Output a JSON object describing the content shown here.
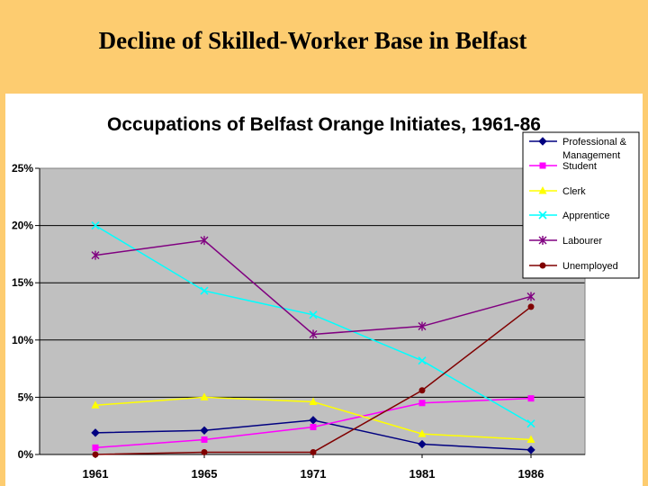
{
  "slide": {
    "title": "Decline of Skilled-Worker Base in Belfast"
  },
  "chart_data": {
    "type": "line",
    "title": "Occupations of Belfast Orange Initiates, 1961-86",
    "categories": [
      "1961",
      "1965",
      "1971",
      "1981",
      "1986"
    ],
    "ylim": [
      0,
      25
    ],
    "yticks": [
      "0%",
      "5%",
      "10%",
      "15%",
      "20%",
      "25%"
    ],
    "grid": true,
    "legend_position": "top-right",
    "plot_background": "#C0C0C0",
    "series": [
      {
        "name": "Professional & Management",
        "color": "#000080",
        "marker": "diamond",
        "values": [
          1.9,
          2.1,
          3.0,
          0.9,
          0.4
        ]
      },
      {
        "name": "Student",
        "color": "#FF00FF",
        "marker": "square",
        "values": [
          0.6,
          1.3,
          2.4,
          4.5,
          4.9
        ]
      },
      {
        "name": "Clerk",
        "color": "#FFFF00",
        "marker": "triangle",
        "values": [
          4.3,
          5.0,
          4.6,
          1.8,
          1.3
        ]
      },
      {
        "name": "Apprentice",
        "color": "#00FFFF",
        "marker": "x",
        "values": [
          20.0,
          14.3,
          12.2,
          8.2,
          2.7
        ]
      },
      {
        "name": "Labourer",
        "color": "#800080",
        "marker": "star",
        "values": [
          17.4,
          18.7,
          10.5,
          11.2,
          13.8
        ]
      },
      {
        "name": "Unemployed",
        "color": "#800000",
        "marker": "circle",
        "values": [
          0.0,
          0.2,
          0.2,
          5.6,
          12.9
        ]
      }
    ]
  }
}
